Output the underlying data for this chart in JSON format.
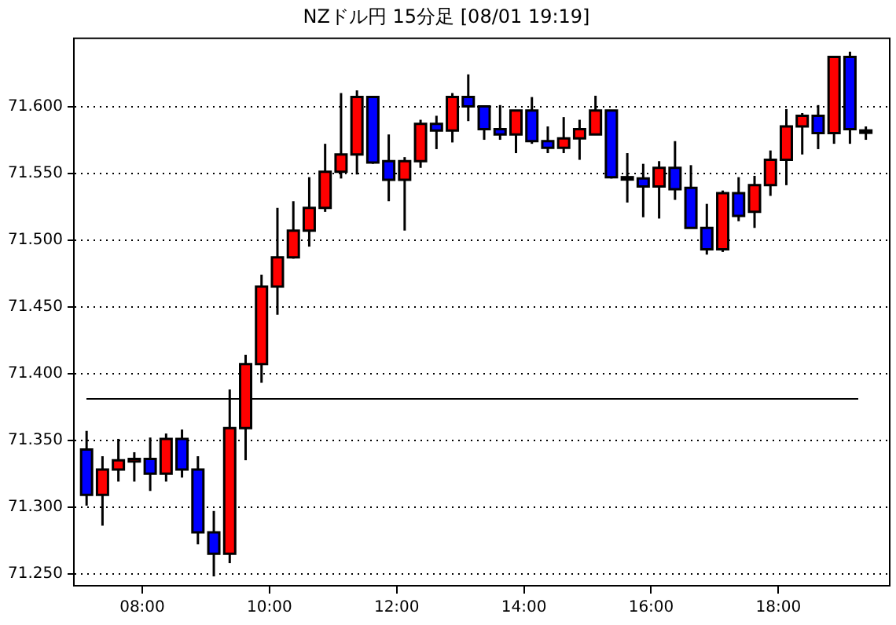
{
  "chart_data": {
    "type": "candlestick",
    "title": "NZドル円 15分足 [08/01 19:19]",
    "x": [
      7.125,
      7.375,
      7.625,
      7.875,
      8.125,
      8.375,
      8.625,
      8.875,
      9.125,
      9.375,
      9.625,
      9.875,
      10.125,
      10.375,
      10.625,
      10.875,
      11.125,
      11.375,
      11.625,
      11.875,
      12.125,
      12.375,
      12.625,
      12.875,
      13.125,
      13.375,
      13.625,
      13.875,
      14.125,
      14.375,
      14.625,
      14.875,
      15.125,
      15.375,
      15.625,
      15.875,
      16.125,
      16.375,
      16.625,
      16.875,
      17.125,
      17.375,
      17.625,
      17.875,
      18.125,
      18.375,
      18.625,
      18.875,
      19.125,
      19.375
    ],
    "ohlc": [
      [
        71.343,
        71.357,
        71.301,
        71.309
      ],
      [
        71.309,
        71.338,
        71.286,
        71.328
      ],
      [
        71.328,
        71.351,
        71.319,
        71.335
      ],
      [
        71.334,
        71.341,
        71.319,
        71.336
      ],
      [
        71.336,
        71.352,
        71.312,
        71.325
      ],
      [
        71.325,
        71.355,
        71.319,
        71.351
      ],
      [
        71.351,
        71.358,
        71.322,
        71.328
      ],
      [
        71.328,
        71.338,
        71.272,
        71.281
      ],
      [
        71.281,
        71.297,
        71.248,
        71.265
      ],
      [
        71.265,
        71.388,
        71.258,
        71.359
      ],
      [
        71.359,
        71.414,
        71.335,
        71.407
      ],
      [
        71.407,
        71.474,
        71.393,
        71.465
      ],
      [
        71.465,
        71.524,
        71.444,
        71.487
      ],
      [
        71.487,
        71.529,
        71.486,
        71.507
      ],
      [
        71.507,
        71.547,
        71.495,
        71.524
      ],
      [
        71.524,
        71.572,
        71.521,
        71.551
      ],
      [
        71.551,
        71.61,
        71.546,
        71.564
      ],
      [
        71.564,
        71.612,
        71.549,
        71.607
      ],
      [
        71.607,
        71.607,
        71.557,
        71.558
      ],
      [
        71.559,
        71.579,
        71.529,
        71.545
      ],
      [
        71.545,
        71.562,
        71.507,
        71.559
      ],
      [
        71.559,
        71.59,
        71.554,
        71.587
      ],
      [
        71.587,
        71.593,
        71.568,
        71.582
      ],
      [
        71.582,
        71.61,
        71.573,
        71.607
      ],
      [
        71.607,
        71.624,
        71.589,
        71.6
      ],
      [
        71.6,
        71.6,
        71.575,
        71.583
      ],
      [
        71.583,
        71.601,
        71.575,
        71.579
      ],
      [
        71.579,
        71.597,
        71.565,
        71.597
      ],
      [
        71.597,
        71.607,
        71.572,
        71.574
      ],
      [
        71.574,
        71.585,
        71.565,
        71.569
      ],
      [
        71.569,
        71.592,
        71.565,
        71.576
      ],
      [
        71.576,
        71.59,
        71.56,
        71.583
      ],
      [
        71.579,
        71.608,
        71.579,
        71.597
      ],
      [
        71.597,
        71.597,
        71.546,
        71.547
      ],
      [
        71.547,
        71.565,
        71.528,
        71.546
      ],
      [
        71.546,
        71.557,
        71.517,
        71.54
      ],
      [
        71.54,
        71.559,
        71.516,
        71.554
      ],
      [
        71.554,
        71.574,
        71.53,
        71.538
      ],
      [
        71.539,
        71.556,
        71.509,
        71.509
      ],
      [
        71.509,
        71.527,
        71.489,
        71.493
      ],
      [
        71.493,
        71.537,
        71.491,
        71.535
      ],
      [
        71.535,
        71.547,
        71.514,
        71.518
      ],
      [
        71.521,
        71.548,
        71.509,
        71.541
      ],
      [
        71.541,
        71.567,
        71.533,
        71.56
      ],
      [
        71.56,
        71.598,
        71.541,
        71.585
      ],
      [
        71.585,
        71.595,
        71.564,
        71.593
      ],
      [
        71.593,
        71.601,
        71.568,
        71.58
      ],
      [
        71.58,
        71.637,
        71.572,
        71.637
      ],
      [
        71.637,
        71.641,
        71.572,
        71.583
      ],
      [
        71.582,
        71.585,
        71.575,
        71.582
      ]
    ],
    "colors": [
      "#0000ff",
      "#ff0000",
      "#ff0000",
      "#ff0000",
      "#0000ff",
      "#ff0000",
      "#0000ff",
      "#0000ff",
      "#0000ff",
      "#ff0000",
      "#ff0000",
      "#ff0000",
      "#ff0000",
      "#ff0000",
      "#ff0000",
      "#ff0000",
      "#ff0000",
      "#ff0000",
      "#0000ff",
      "#0000ff",
      "#ff0000",
      "#ff0000",
      "#0000ff",
      "#ff0000",
      "#0000ff",
      "#0000ff",
      "#0000ff",
      "#ff0000",
      "#0000ff",
      "#0000ff",
      "#ff0000",
      "#ff0000",
      "#ff0000",
      "#0000ff",
      "#0000ff",
      "#0000ff",
      "#ff0000",
      "#0000ff",
      "#0000ff",
      "#0000ff",
      "#ff0000",
      "#0000ff",
      "#ff0000",
      "#ff0000",
      "#ff0000",
      "#ff0000",
      "#0000ff",
      "#ff0000",
      "#0000ff",
      "#0000ff"
    ],
    "xlim": [
      6.925,
      19.75
    ],
    "xticks": [
      {
        "value": 8,
        "label": "08:00"
      },
      {
        "value": 10,
        "label": "10:00"
      },
      {
        "value": 12,
        "label": "12:00"
      },
      {
        "value": 14,
        "label": "14:00"
      },
      {
        "value": 16,
        "label": "16:00"
      },
      {
        "value": 18,
        "label": "18:00"
      }
    ],
    "ylim": [
      71.241,
      71.651
    ],
    "yticks": [
      {
        "value": 71.25,
        "label": "71.250"
      },
      {
        "value": 71.3,
        "label": "71.300"
      },
      {
        "value": 71.35,
        "label": "71.350"
      },
      {
        "value": 71.4,
        "label": "71.400"
      },
      {
        "value": 71.45,
        "label": "71.450"
      },
      {
        "value": 71.5,
        "label": "71.500"
      },
      {
        "value": 71.55,
        "label": "71.550"
      },
      {
        "value": 71.6,
        "label": "71.600"
      }
    ],
    "grid": "y",
    "legend": false,
    "ref_lines": [
      {
        "axis": "y",
        "value": 71.381,
        "color": "#000000"
      }
    ]
  }
}
